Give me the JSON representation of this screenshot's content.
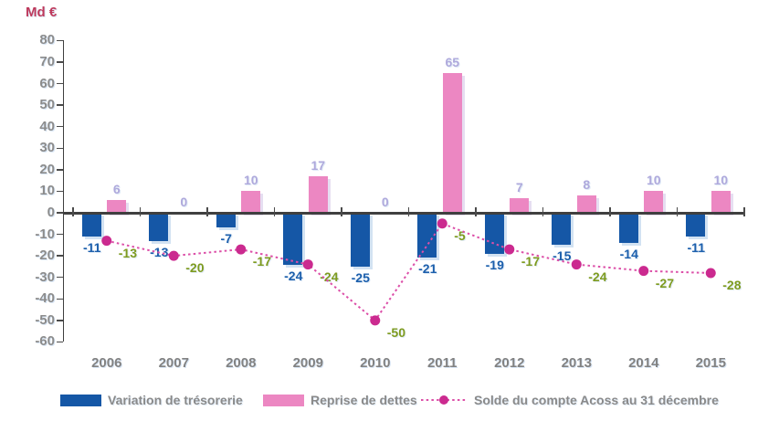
{
  "chart_data": {
    "type": "bar",
    "subtype": "grouped-bars-with-dotted-line",
    "unit_label": "Md €",
    "categories": [
      "2006",
      "2007",
      "2008",
      "2009",
      "2010",
      "2011",
      "2012",
      "2013",
      "2014",
      "2015"
    ],
    "series": [
      {
        "name": "Variation de trésorerie",
        "kind": "bar",
        "color": "#1557A6",
        "label_color": "#1C5FAC",
        "values": [
          -11,
          -13,
          -7,
          -24,
          -25,
          -21,
          -19,
          -15,
          -14,
          -11
        ]
      },
      {
        "name": "Reprise de dettes",
        "kind": "bar",
        "color": "#EC87C2",
        "label_color": "#AFA9DC",
        "values": [
          6,
          0,
          10,
          17,
          0,
          65,
          7,
          8,
          10,
          10
        ]
      },
      {
        "name": "Solde du compte Acoss au 31 décembre",
        "kind": "line",
        "color": "#DC4FA8",
        "dot_color": "#CB2A8F",
        "label_color": "#7E9B1F",
        "values": [
          -13,
          -20,
          -17,
          -24,
          -50,
          -5,
          -17,
          -24,
          -27,
          -28
        ]
      }
    ],
    "y_axis": {
      "min": -60,
      "max": 80,
      "step": 10,
      "tick_labels": [
        "80",
        "70",
        "60",
        "50",
        "40",
        "30",
        "20",
        "10",
        "0",
        "-10",
        "-20",
        "-30",
        "-40",
        "-50",
        "-60"
      ]
    },
    "legend_position": "bottom",
    "grid": "off",
    "colors": {
      "background": "#FFFFFF",
      "axis": "#3F3F3F",
      "y_tick_text": "#8C8C8C",
      "x_tick_text": "#828282",
      "unit_label": "#BE3A5C",
      "legend_text": "#8A8A8A"
    }
  }
}
